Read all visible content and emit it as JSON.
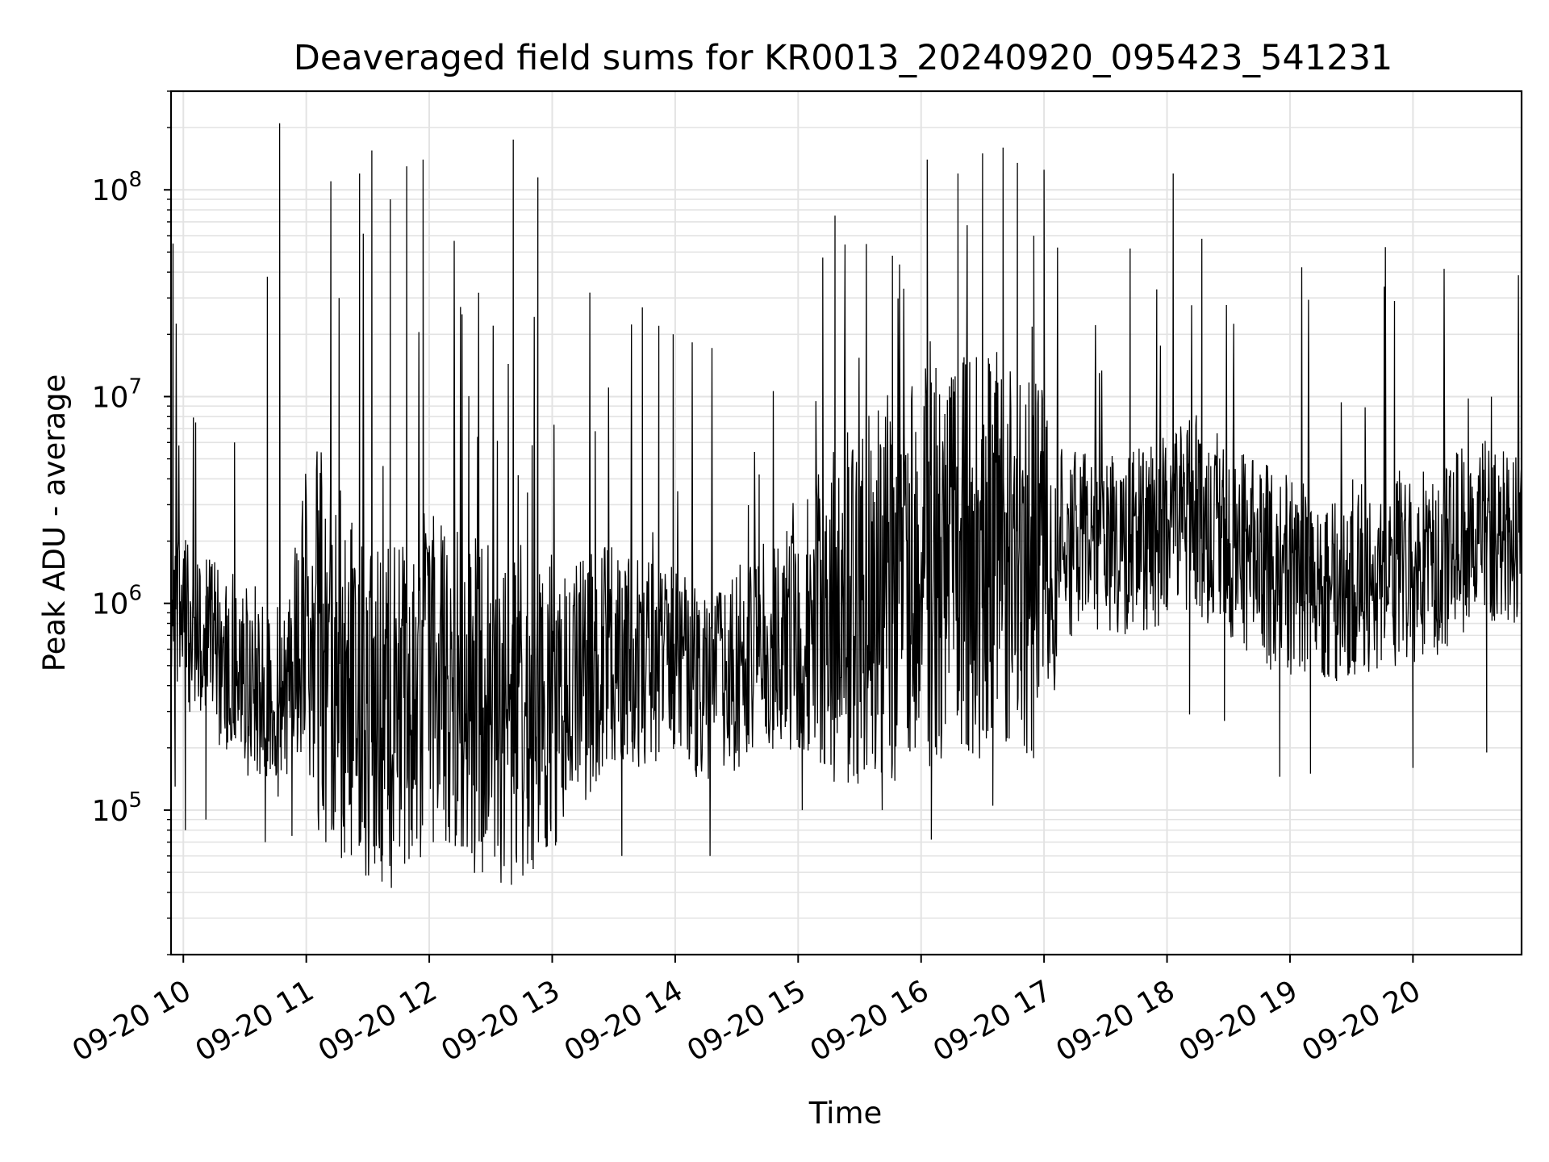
{
  "chart_data": {
    "type": "line",
    "title": "Deaveraged field sums for KR0013_20240920_095423_541231",
    "xlabel": "Time",
    "ylabel": "Peak ADU - average",
    "y_scale": "log",
    "ylim": [
      20000,
      300000000
    ],
    "xlim": [
      "2024-09-20 09:54",
      "2024-09-20 20:53"
    ],
    "grid": true,
    "x_tick_labels": [
      "09-20 10",
      "09-20 11",
      "09-20 12",
      "09-20 13",
      "09-20 14",
      "09-20 15",
      "09-20 16",
      "09-20 17",
      "09-20 18",
      "09-20 19",
      "09-20 20"
    ],
    "x_tick_hours": [
      10,
      11,
      12,
      13,
      14,
      15,
      16,
      17,
      18,
      19,
      20
    ],
    "y_tick_labels": [
      {
        "base": "10",
        "exp": "5"
      },
      {
        "base": "10",
        "exp": "6"
      },
      {
        "base": "10",
        "exp": "7"
      },
      {
        "base": "10",
        "exp": "8"
      }
    ],
    "y_tick_values": [
      100000,
      1000000,
      10000000,
      100000000
    ],
    "line_color": "#000000",
    "series": [
      {
        "values": [
          [
            "2024-09-20 09:54",
            600000
          ],
          [
            "2024-09-20 09:55",
            55000000
          ],
          [
            "2024-09-20 09:56",
            130000
          ],
          [
            "2024-09-20 09:58",
            1800000
          ],
          [
            "2024-09-20 10:01",
            80000
          ],
          [
            "2024-09-20 10:06",
            7500000
          ],
          [
            "2024-09-20 10:11",
            90000
          ],
          [
            "2024-09-20 10:25",
            6000000
          ],
          [
            "2024-09-20 10:40",
            70000
          ],
          [
            "2024-09-20 10:41",
            38000000
          ],
          [
            "2024-09-20 10:47",
            210000000
          ],
          [
            "2024-09-20 10:53",
            75000
          ],
          [
            "2024-09-20 11:06",
            80000
          ],
          [
            "2024-09-20 11:12",
            110000000
          ],
          [
            "2024-09-20 11:16",
            30000000
          ],
          [
            "2024-09-20 11:22",
            70000
          ],
          [
            "2024-09-20 11:26",
            120000000
          ],
          [
            "2024-09-20 11:32",
            155000000
          ],
          [
            "2024-09-20 11:37",
            80000
          ],
          [
            "2024-09-20 11:41",
            90000000
          ],
          [
            "2024-09-20 11:48",
            55000
          ],
          [
            "2024-09-20 11:49",
            130000000
          ],
          [
            "2024-09-20 11:57",
            140000000
          ],
          [
            "2024-09-20 12:02",
            70000
          ],
          [
            "2024-09-20 12:16",
            25000000
          ],
          [
            "2024-09-20 12:26",
            50000
          ],
          [
            "2024-09-20 12:41",
            175000000
          ],
          [
            "2024-09-20 12:48",
            55000
          ],
          [
            "2024-09-20 12:53",
            115000000
          ],
          [
            "2024-09-20 13:02",
            70000
          ],
          [
            "2024-09-20 13:21",
            6800000
          ],
          [
            "2024-09-20 13:34",
            60000
          ],
          [
            "2024-09-20 13:44",
            27000000
          ],
          [
            "2024-09-20 13:52",
            22000000
          ],
          [
            "2024-09-20 13:59",
            20000000
          ],
          [
            "2024-09-20 14:17",
            60000
          ],
          [
            "2024-09-20 14:41",
            4200000
          ],
          [
            "2024-09-20 15:02",
            100000
          ],
          [
            "2024-09-20 15:12",
            47000000
          ],
          [
            "2024-09-20 15:18",
            75000000
          ],
          [
            "2024-09-20 15:41",
            100000
          ],
          [
            "2024-09-20 15:46",
            48000000
          ],
          [
            "2024-09-20 16:03",
            140000000
          ],
          [
            "2024-09-20 16:05",
            72000
          ],
          [
            "2024-09-20 16:18",
            120000000
          ],
          [
            "2024-09-20 16:30",
            150000000
          ],
          [
            "2024-09-20 16:35",
            105000
          ],
          [
            "2024-09-20 16:40",
            160000000
          ],
          [
            "2024-09-20 16:47",
            135000000
          ],
          [
            "2024-09-20 16:55",
            60000000
          ],
          [
            "2024-09-20 17:00",
            125000000
          ],
          [
            "2024-09-20 17:05",
            420000
          ],
          [
            "2024-09-20 17:27",
            13000000
          ],
          [
            "2024-09-20 17:42",
            52000000
          ],
          [
            "2024-09-20 17:55",
            33000000
          ],
          [
            "2024-09-20 18:03",
            120000000
          ],
          [
            "2024-09-20 18:11",
            290000
          ],
          [
            "2024-09-20 18:17",
            58000000
          ],
          [
            "2024-09-20 18:28",
            270000
          ],
          [
            "2024-09-20 18:44",
            2700000
          ],
          [
            "2024-09-20 18:55",
            145000
          ],
          [
            "2024-09-20 19:10",
            150000
          ],
          [
            "2024-09-20 19:28",
            2500000
          ],
          [
            "2024-09-20 19:46",
            34000000
          ],
          [
            "2024-09-20 19:51",
            29000000
          ],
          [
            "2024-09-20 20:00",
            160000
          ],
          [
            "2024-09-20 20:14",
            2700000
          ],
          [
            "2024-09-20 20:27",
            9800000
          ],
          [
            "2024-09-20 20:36",
            190000
          ],
          [
            "2024-09-20 20:44",
            2500000
          ],
          [
            "2024-09-20 20:53",
            800000
          ]
        ]
      }
    ]
  }
}
